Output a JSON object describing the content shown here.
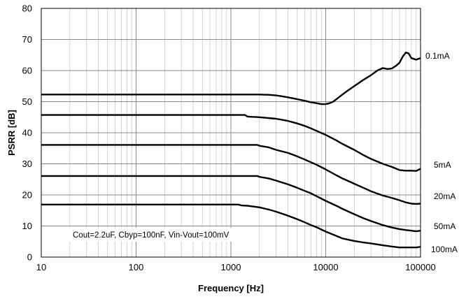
{
  "chart_data": {
    "type": "line",
    "title": "",
    "xlabel": "Frequency [Hz]",
    "ylabel": "PSRR [dB]",
    "x_scale": "log",
    "xlim": [
      10,
      100000
    ],
    "ylim": [
      0,
      80
    ],
    "x_ticks": [
      "10",
      "100",
      "1000",
      "10000",
      "100000"
    ],
    "y_ticks": [
      "0",
      "10",
      "20",
      "30",
      "40",
      "50",
      "60",
      "70",
      "80"
    ],
    "grid": true,
    "annotation": "Cout=2.2uF, Cbyp=100nF, Vin-Vout=100mV",
    "series": [
      {
        "name": "0.1mA",
        "points": [
          [
            10,
            52.3
          ],
          [
            2000,
            52.3
          ],
          [
            2500,
            52.2
          ],
          [
            3000,
            52
          ],
          [
            3500,
            51.7
          ],
          [
            4000,
            51.4
          ],
          [
            5000,
            50.8
          ],
          [
            6000,
            50.3
          ],
          [
            7000,
            49.8
          ],
          [
            8000,
            49.5
          ],
          [
            9000,
            49.2
          ],
          [
            10000,
            49.2
          ],
          [
            11000,
            49.5
          ],
          [
            12000,
            50
          ],
          [
            13000,
            50.8
          ],
          [
            15000,
            52.3
          ],
          [
            17000,
            53.5
          ],
          [
            20000,
            55
          ],
          [
            25000,
            57
          ],
          [
            30000,
            58.5
          ],
          [
            35000,
            60
          ],
          [
            40000,
            60.8
          ],
          [
            45000,
            60.5
          ],
          [
            50000,
            60.7
          ],
          [
            55000,
            61.5
          ],
          [
            60000,
            62.5
          ],
          [
            65000,
            64.5
          ],
          [
            70000,
            65.8
          ],
          [
            75000,
            65.5
          ],
          [
            80000,
            64
          ],
          [
            90000,
            63.5
          ],
          [
            100000,
            64
          ]
        ]
      },
      {
        "name": "5mA",
        "points": [
          [
            10,
            45.7
          ],
          [
            1400,
            45.7
          ],
          [
            1500,
            45.2
          ],
          [
            2000,
            45
          ],
          [
            3000,
            44.5
          ],
          [
            4000,
            43.8
          ],
          [
            5000,
            43
          ],
          [
            6000,
            42.2
          ],
          [
            7000,
            41.4
          ],
          [
            8000,
            40.6
          ],
          [
            10000,
            39.3
          ],
          [
            13000,
            37.5
          ],
          [
            15000,
            36.4
          ],
          [
            20000,
            34.5
          ],
          [
            25000,
            32.8
          ],
          [
            30000,
            31.6
          ],
          [
            40000,
            30
          ],
          [
            50000,
            29
          ],
          [
            60000,
            28
          ],
          [
            70000,
            27.8
          ],
          [
            80000,
            27.8
          ],
          [
            90000,
            27.7
          ],
          [
            100000,
            28.4
          ]
        ]
      },
      {
        "name": "20mA",
        "points": [
          [
            10,
            36.1
          ],
          [
            1900,
            36.1
          ],
          [
            2000,
            35.8
          ],
          [
            2500,
            35.3
          ],
          [
            3000,
            34.5
          ],
          [
            4000,
            33.5
          ],
          [
            5000,
            32.4
          ],
          [
            6000,
            31.4
          ],
          [
            7000,
            30.5
          ],
          [
            8000,
            29.7
          ],
          [
            10000,
            28.2
          ],
          [
            13000,
            26.3
          ],
          [
            15000,
            25.3
          ],
          [
            20000,
            23.6
          ],
          [
            25000,
            22.3
          ],
          [
            30000,
            21.2
          ],
          [
            40000,
            19.8
          ],
          [
            50000,
            19
          ],
          [
            60000,
            18.3
          ],
          [
            70000,
            17.6
          ],
          [
            80000,
            17.2
          ],
          [
            90000,
            17.1
          ],
          [
            100000,
            17.2
          ]
        ]
      },
      {
        "name": "50mA",
        "points": [
          [
            10,
            26.1
          ],
          [
            1900,
            26.1
          ],
          [
            2000,
            25.8
          ],
          [
            2500,
            25.3
          ],
          [
            3000,
            24.6
          ],
          [
            4000,
            23.4
          ],
          [
            5000,
            22.3
          ],
          [
            6000,
            21.3
          ],
          [
            7000,
            20.5
          ],
          [
            8000,
            19.6
          ],
          [
            10000,
            18.1
          ],
          [
            13000,
            16.5
          ],
          [
            15000,
            15.5
          ],
          [
            20000,
            13.8
          ],
          [
            25000,
            12.5
          ],
          [
            30000,
            11.6
          ],
          [
            40000,
            10.3
          ],
          [
            50000,
            9.5
          ],
          [
            60000,
            9
          ],
          [
            70000,
            8.7
          ],
          [
            80000,
            8.5
          ],
          [
            90000,
            8.3
          ],
          [
            100000,
            8.5
          ]
        ]
      },
      {
        "name": "100mA",
        "points": [
          [
            10,
            16.9
          ],
          [
            1200,
            16.9
          ],
          [
            1300,
            16.6
          ],
          [
            1500,
            16.5
          ],
          [
            2000,
            16
          ],
          [
            2500,
            15.3
          ],
          [
            3000,
            14.6
          ],
          [
            4000,
            13.3
          ],
          [
            5000,
            12.2
          ],
          [
            6000,
            11.2
          ],
          [
            7000,
            10.3
          ],
          [
            8000,
            9.6
          ],
          [
            10000,
            8.2
          ],
          [
            13000,
            6.8
          ],
          [
            15000,
            6
          ],
          [
            20000,
            5.2
          ],
          [
            25000,
            4.7
          ],
          [
            30000,
            4.4
          ],
          [
            40000,
            3.8
          ],
          [
            50000,
            3.4
          ],
          [
            60000,
            3.1
          ],
          [
            70000,
            3.1
          ],
          [
            80000,
            3.1
          ],
          [
            90000,
            3.1
          ],
          [
            100000,
            3.3
          ]
        ]
      }
    ]
  }
}
